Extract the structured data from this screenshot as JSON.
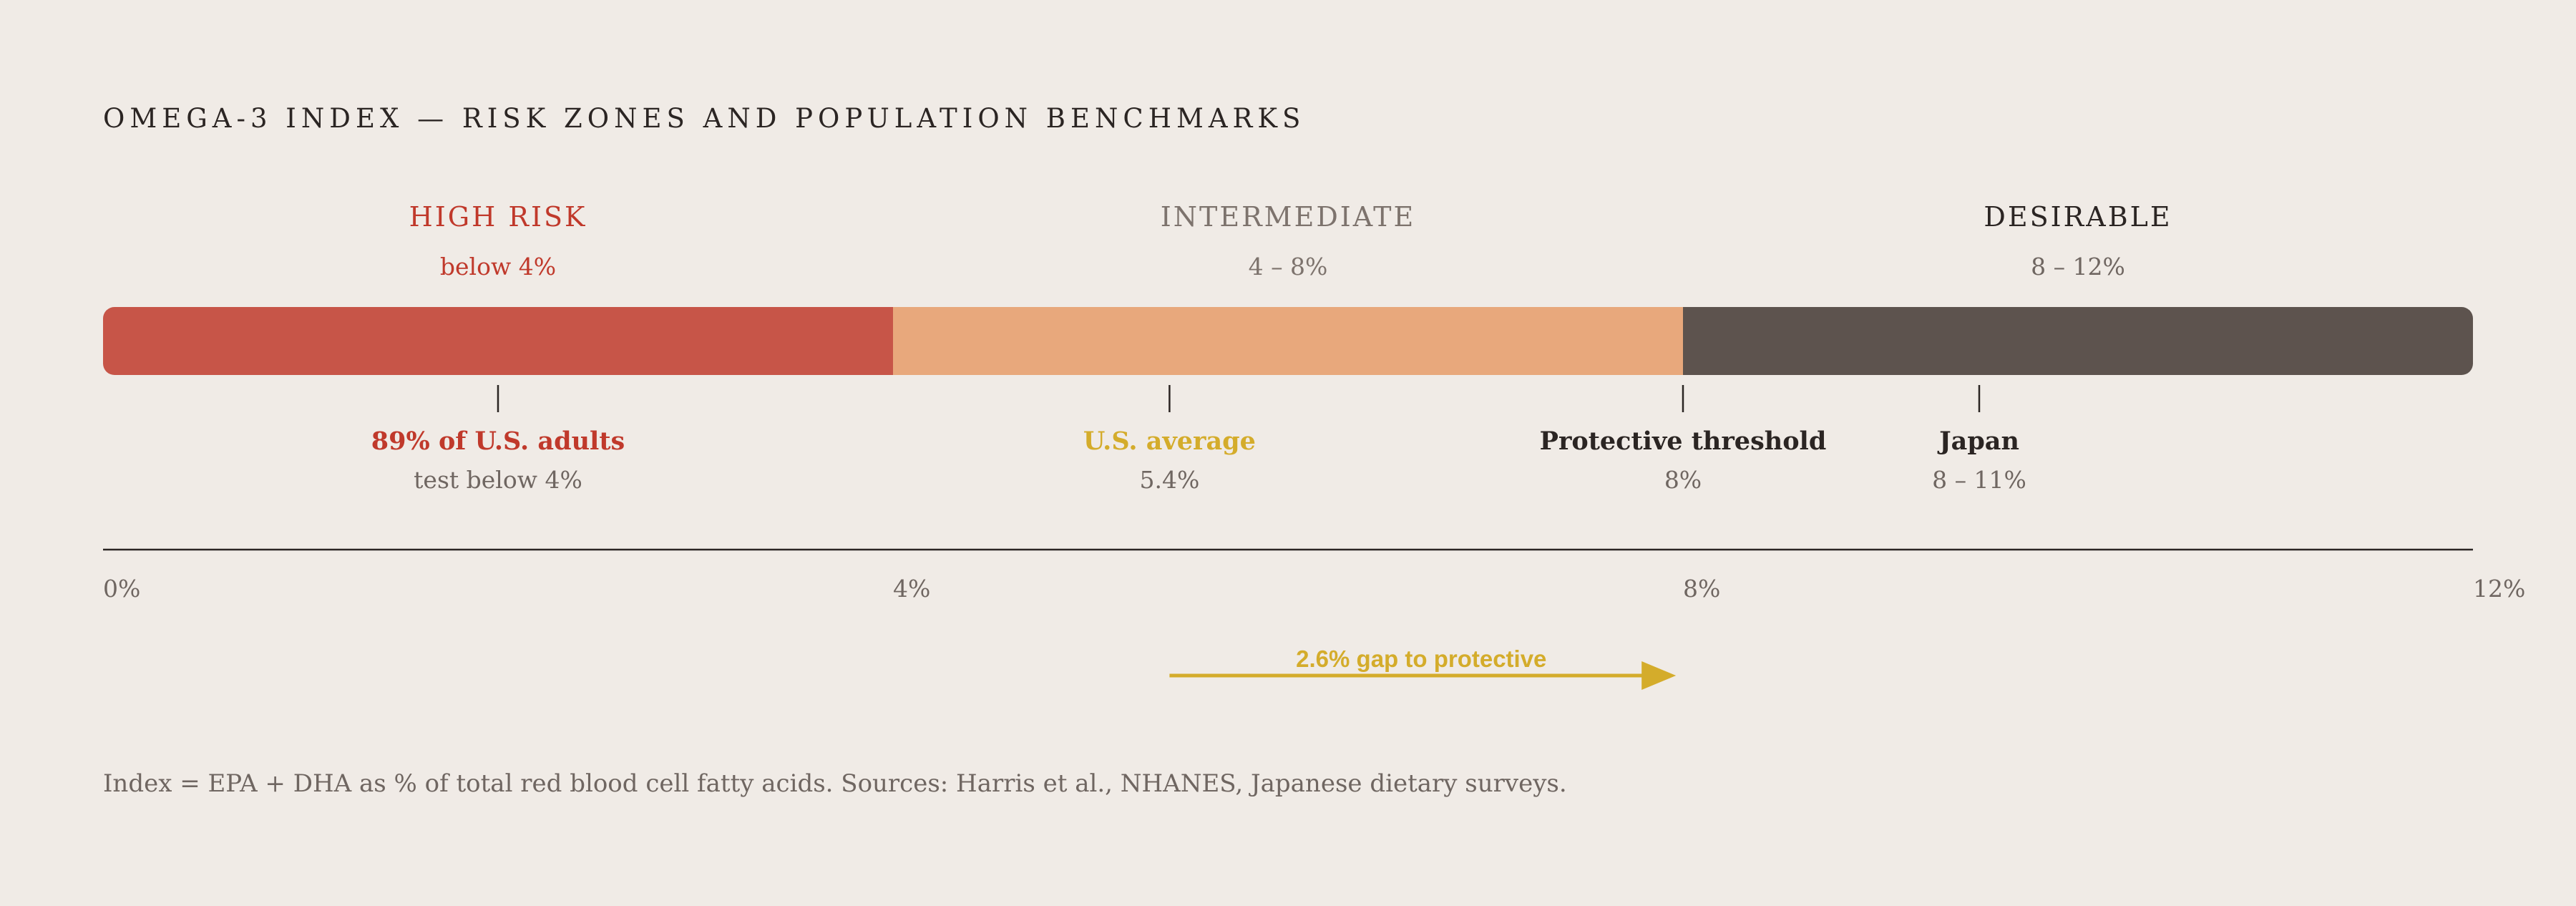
{
  "chart_data": {
    "type": "bar",
    "title": "OMEGA-3 INDEX — RISK ZONES AND POPULATION BENCHMARKS",
    "xlim": [
      0,
      12
    ],
    "x_ticks": [
      {
        "value": 0,
        "label": "0%"
      },
      {
        "value": 4,
        "label": "4%"
      },
      {
        "value": 8,
        "label": "8%"
      },
      {
        "value": 12,
        "label": "12%"
      }
    ],
    "zones": [
      {
        "name": "HIGH RISK",
        "range_label": "below 4%",
        "start": 0,
        "end": 4,
        "color": "#c75548",
        "label_color": "#c0392b"
      },
      {
        "name": "INTERMEDIATE",
        "range_label": "4 – 8%",
        "start": 4,
        "end": 8,
        "color": "#e8a87c",
        "label_color": "#7d736d"
      },
      {
        "name": "DESIRABLE",
        "range_label": "8 – 12%",
        "start": 8,
        "end": 12,
        "color": "#5d534e",
        "label_color": "#2b2523"
      }
    ],
    "markers": [
      {
        "value": 2,
        "label": "89% of U.S. adults",
        "sublabel": "test below 4%",
        "color": "#c0392b"
      },
      {
        "value": 5.4,
        "label": "U.S. average",
        "sublabel": "5.4%",
        "color": "#d4ac2b"
      },
      {
        "value": 8,
        "label": "Protective threshold",
        "sublabel": "8%",
        "color": "#2b2523"
      },
      {
        "value": 9.5,
        "label": "Japan",
        "sublabel": "8 – 11%",
        "color": "#2b2523"
      }
    ],
    "gap_annotation": {
      "from": 5.4,
      "to": 7.95,
      "label": "2.6% gap to protective",
      "color": "#d4ac2b"
    },
    "footnote": "Index = EPA + DHA as % of total red blood cell fatty acids. Sources: Harris et al., NHANES, Japanese dietary surveys."
  }
}
